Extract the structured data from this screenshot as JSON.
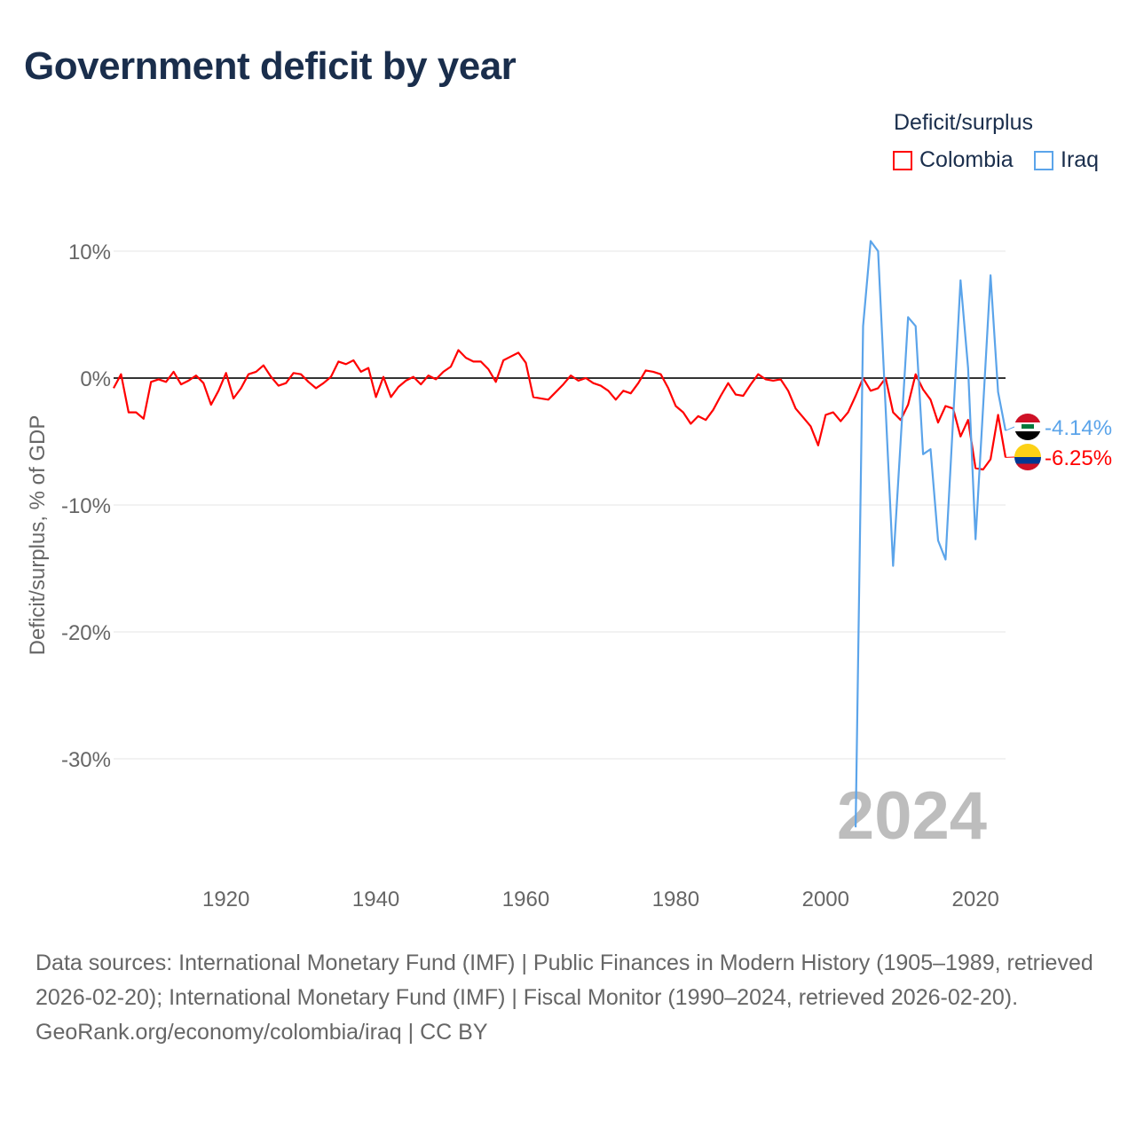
{
  "chart_data": {
    "type": "line",
    "title": "Government deficit by year",
    "ylabel": "Deficit/surplus, % of GDP",
    "xlabel": "",
    "legend_title": "Deficit/surplus",
    "legend_position": "top-right",
    "xlim": [
      1905,
      2024
    ],
    "ylim": [
      -36,
      11
    ],
    "x_ticks": [
      1920,
      1940,
      1960,
      1980,
      2000,
      2020
    ],
    "y_ticks": [
      10,
      0,
      -10,
      -20,
      -30
    ],
    "y_tick_labels": [
      "10%",
      "0%",
      "-10%",
      "-20%",
      "-30%"
    ],
    "year_watermark": "2024",
    "series": [
      {
        "name": "Colombia",
        "color": "#ff0000",
        "start_year": 1905,
        "end_label": "-6.25%",
        "values": [
          -0.8,
          0.3,
          -2.7,
          -2.7,
          -3.2,
          -0.3,
          -0.1,
          -0.3,
          0.5,
          -0.5,
          -0.2,
          0.2,
          -0.4,
          -2.1,
          -1.0,
          0.4,
          -1.6,
          -0.8,
          0.3,
          0.5,
          1.0,
          0.1,
          -0.6,
          -0.4,
          0.4,
          0.3,
          -0.3,
          -0.8,
          -0.4,
          0.1,
          1.3,
          1.1,
          1.4,
          0.5,
          0.8,
          -1.5,
          0.1,
          -1.5,
          -0.7,
          -0.2,
          0.1,
          -0.5,
          0.2,
          -0.1,
          0.5,
          0.9,
          2.2,
          1.6,
          1.3,
          1.3,
          0.7,
          -0.3,
          1.4,
          1.7,
          2.0,
          1.2,
          -1.5,
          -1.6,
          -1.7,
          -1.1,
          -0.5,
          0.2,
          -0.2,
          0.0,
          -0.4,
          -0.6,
          -1.0,
          -1.7,
          -1.0,
          -1.2,
          -0.4,
          0.6,
          0.5,
          0.3,
          -0.8,
          -2.2,
          -2.7,
          -3.6,
          -3.0,
          -3.3,
          -2.5,
          -1.4,
          -0.4,
          -1.3,
          -1.4,
          -0.5,
          0.3,
          -0.1,
          -0.2,
          -0.1,
          -1.0,
          -2.4,
          -3.1,
          -3.8,
          -5.3,
          -2.9,
          -2.7,
          -3.4,
          -2.7,
          -1.4,
          0.0,
          -1.0,
          -0.8,
          0.0,
          -2.7,
          -3.3,
          -2.1,
          0.3,
          -0.9,
          -1.7,
          -3.5,
          -2.2,
          -2.4,
          -4.6,
          -3.3,
          -7.1,
          -7.2,
          -6.4,
          -2.9,
          -6.25
        ]
      },
      {
        "name": "Iraq",
        "color": "#5ba4ea",
        "start_year": 2004,
        "end_label": "-4.14%",
        "values": [
          -35.4,
          4.1,
          10.8,
          10.0,
          -2.4,
          -14.8,
          -5.0,
          4.8,
          4.1,
          -6.0,
          -5.6,
          -12.8,
          -14.3,
          -3.3,
          7.7,
          0.8,
          -12.7,
          -2.3,
          8.1,
          -1.1,
          -4.14
        ]
      }
    ]
  },
  "footer": {
    "sources": "Data sources: International Monetary Fund (IMF) | Public Finances in Modern History (1905–1989, retrieved 2026-02-20); International Monetary Fund (IMF) | Fiscal Monitor (1990–2024, retrieved 2026-02-20).",
    "credit": "GeoRank.org/economy/colombia/iraq | CC BY"
  }
}
